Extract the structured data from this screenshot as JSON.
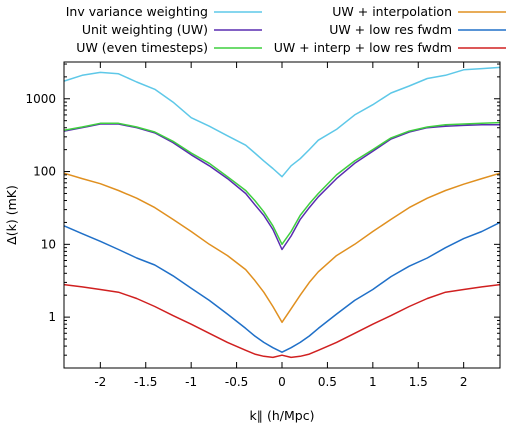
{
  "chart_data": {
    "type": "line",
    "xlabel": "k∥ (h/Mpc)",
    "ylabel": "Δ(k) (mK)",
    "xlim": [
      -2.4,
      2.4
    ],
    "ylim": [
      0.2,
      3200
    ],
    "yscale": "log",
    "x_ticks": [
      {
        "v": -2,
        "label": "-2"
      },
      {
        "v": -1.5,
        "label": "-1.5"
      },
      {
        "v": -1,
        "label": "-1"
      },
      {
        "v": -0.5,
        "label": "-0.5"
      },
      {
        "v": 0,
        "label": "0"
      },
      {
        "v": 0.5,
        "label": "0.5"
      },
      {
        "v": 1,
        "label": "1"
      },
      {
        "v": 1.5,
        "label": "1.5"
      },
      {
        "v": 2,
        "label": "2"
      }
    ],
    "y_ticks": [
      {
        "v": 1,
        "label": "1"
      },
      {
        "v": 10,
        "label": "10"
      },
      {
        "v": 100,
        "label": "100"
      },
      {
        "v": 1000,
        "label": "1000"
      }
    ],
    "grid": false,
    "legend_position": "top",
    "x": [
      -2.4,
      -2.2,
      -2.0,
      -1.8,
      -1.6,
      -1.4,
      -1.2,
      -1.0,
      -0.8,
      -0.6,
      -0.4,
      -0.3,
      -0.2,
      -0.1,
      0.0,
      0.1,
      0.2,
      0.3,
      0.4,
      0.6,
      0.8,
      1.0,
      1.2,
      1.4,
      1.6,
      1.8,
      2.0,
      2.2,
      2.4
    ],
    "series": [
      {
        "name": "Inv variance weighting",
        "color": "#5ec8e8",
        "values": [
          1750,
          2100,
          2300,
          2200,
          1700,
          1350,
          900,
          550,
          420,
          310,
          230,
          180,
          140,
          110,
          85,
          120,
          150,
          200,
          270,
          380,
          600,
          830,
          1200,
          1500,
          1900,
          2100,
          2500,
          2600,
          2700
        ]
      },
      {
        "name": "Unit weighting (UW)",
        "color": "#5a2db0",
        "values": [
          360,
          400,
          450,
          450,
          400,
          340,
          250,
          170,
          120,
          80,
          50,
          35,
          25,
          16,
          8.5,
          13,
          22,
          32,
          45,
          80,
          130,
          190,
          280,
          350,
          400,
          420,
          430,
          440,
          440
        ]
      },
      {
        "name": "UW (even timesteps)",
        "color": "#3fcf3f",
        "values": [
          370,
          410,
          460,
          460,
          410,
          350,
          260,
          180,
          130,
          85,
          55,
          40,
          28,
          18,
          10,
          15,
          25,
          36,
          50,
          90,
          140,
          200,
          290,
          360,
          410,
          440,
          450,
          460,
          470
        ]
      },
      {
        "name": "UW + interpolation",
        "color": "#e09020",
        "values": [
          95,
          80,
          68,
          55,
          43,
          32,
          22,
          15,
          10,
          7,
          4.5,
          3.2,
          2.2,
          1.4,
          0.85,
          1.3,
          2.0,
          3.0,
          4.2,
          7,
          10,
          15,
          22,
          32,
          43,
          55,
          67,
          80,
          95
        ]
      },
      {
        "name": "UW + low res fwdm",
        "color": "#2070c8",
        "values": [
          18,
          14,
          11,
          8.5,
          6.5,
          5.2,
          3.7,
          2.5,
          1.7,
          1.1,
          0.7,
          0.55,
          0.45,
          0.38,
          0.33,
          0.38,
          0.45,
          0.55,
          0.7,
          1.1,
          1.7,
          2.4,
          3.6,
          5,
          6.5,
          9,
          12,
          15,
          20
        ]
      },
      {
        "name": "UW + interp + low res fwdm",
        "color": "#d02020",
        "values": [
          2.8,
          2.6,
          2.4,
          2.2,
          1.8,
          1.4,
          1.05,
          0.8,
          0.6,
          0.45,
          0.35,
          0.31,
          0.29,
          0.28,
          0.3,
          0.28,
          0.29,
          0.31,
          0.35,
          0.45,
          0.6,
          0.8,
          1.05,
          1.4,
          1.8,
          2.2,
          2.4,
          2.6,
          2.8
        ]
      }
    ]
  }
}
